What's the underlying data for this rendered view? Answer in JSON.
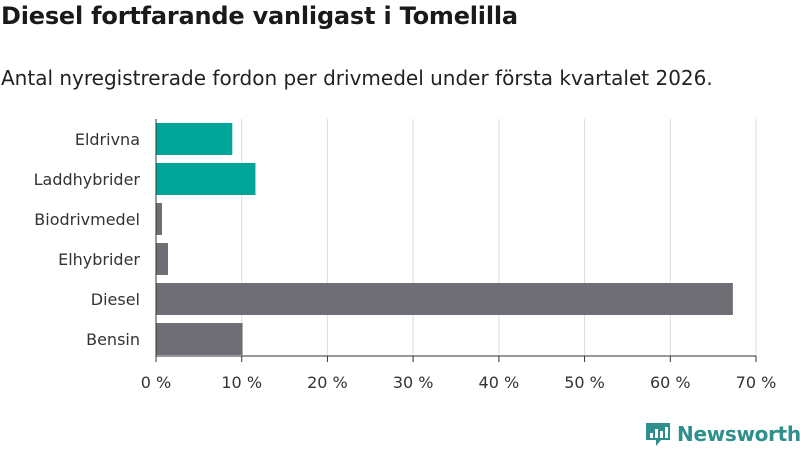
{
  "header": {
    "title": "Diesel fortfarande vanligast i Tomelilla",
    "subtitle": "Antal nyregistrerade fordon per drivmedel under första kvartalet 2026."
  },
  "colors": {
    "highlight": "#00A598",
    "default": "#6E6E74",
    "grid": "#DDDDDD",
    "brand": "#2F8F8C"
  },
  "chart_data": {
    "type": "bar",
    "orientation": "horizontal",
    "categories": [
      "Eldrivna",
      "Laddhybrider",
      "Biodrivmedel",
      "Elhybrider",
      "Diesel",
      "Bensin"
    ],
    "values": [
      8.9,
      11.6,
      0.7,
      1.4,
      67.3,
      10.1
    ],
    "highlighted": [
      true,
      true,
      false,
      false,
      false,
      false
    ],
    "xlim": [
      0,
      70
    ],
    "xticks": [
      0,
      10,
      20,
      30,
      40,
      50,
      60,
      70
    ],
    "xtick_labels": [
      "0 %",
      "10 %",
      "20 %",
      "30 %",
      "40 %",
      "50 %",
      "60 %",
      "70 %"
    ],
    "grid": true,
    "title": "Diesel fortfarande vanligast i Tomelilla",
    "xlabel": "",
    "ylabel": ""
  },
  "branding": {
    "name": "Newsworthy",
    "icon": "newsworthy-logo-icon"
  }
}
